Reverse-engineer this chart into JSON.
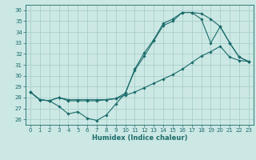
{
  "xlabel": "Humidex (Indice chaleur)",
  "xlim": [
    -0.5,
    23.5
  ],
  "ylim": [
    25.5,
    36.5
  ],
  "yticks": [
    26,
    27,
    28,
    29,
    30,
    31,
    32,
    33,
    34,
    35,
    36
  ],
  "xticks": [
    0,
    1,
    2,
    3,
    4,
    5,
    6,
    7,
    8,
    9,
    10,
    11,
    12,
    13,
    14,
    15,
    16,
    17,
    18,
    19,
    20,
    21,
    22,
    23
  ],
  "bg_color": "#cce8e4",
  "grid_color": "#a8d0cc",
  "line_color": "#1a6b6b",
  "series": [
    {
      "x": [
        0,
        1,
        2,
        3,
        4,
        5,
        6,
        7,
        8,
        9,
        10,
        11,
        12,
        13,
        14,
        15,
        16,
        17,
        18,
        19,
        20,
        21,
        22,
        23
      ],
      "y": [
        28.5,
        27.8,
        27.7,
        27.2,
        26.5,
        26.7,
        26.1,
        25.9,
        26.4,
        27.4,
        28.4,
        30.5,
        31.8,
        33.2,
        34.6,
        35.0,
        35.8,
        35.8,
        35.2,
        33.0,
        34.5,
        33.0,
        31.7,
        31.3
      ]
    },
    {
      "x": [
        0,
        1,
        2,
        3,
        4,
        5,
        6,
        7,
        8,
        9,
        10,
        11,
        12,
        13,
        14,
        15,
        16,
        17,
        18,
        19,
        20,
        21,
        22,
        23
      ],
      "y": [
        28.5,
        27.8,
        27.7,
        28.0,
        27.8,
        27.8,
        27.8,
        27.8,
        27.8,
        27.9,
        28.2,
        28.5,
        28.9,
        29.3,
        29.7,
        30.1,
        30.6,
        31.2,
        31.8,
        32.2,
        32.7,
        31.7,
        31.4,
        31.3
      ]
    },
    {
      "x": [
        0,
        1,
        2,
        3,
        4,
        5,
        6,
        7,
        8,
        9,
        10,
        11,
        12,
        13,
        14,
        15,
        16,
        17,
        18,
        19,
        20,
        21,
        22,
        23
      ],
      "y": [
        28.5,
        27.8,
        27.7,
        28.0,
        27.7,
        27.7,
        27.7,
        27.7,
        27.8,
        27.9,
        28.4,
        30.6,
        32.1,
        33.3,
        34.8,
        35.2,
        35.8,
        35.8,
        35.7,
        35.2,
        34.5,
        33.0,
        31.7,
        31.3
      ]
    }
  ]
}
